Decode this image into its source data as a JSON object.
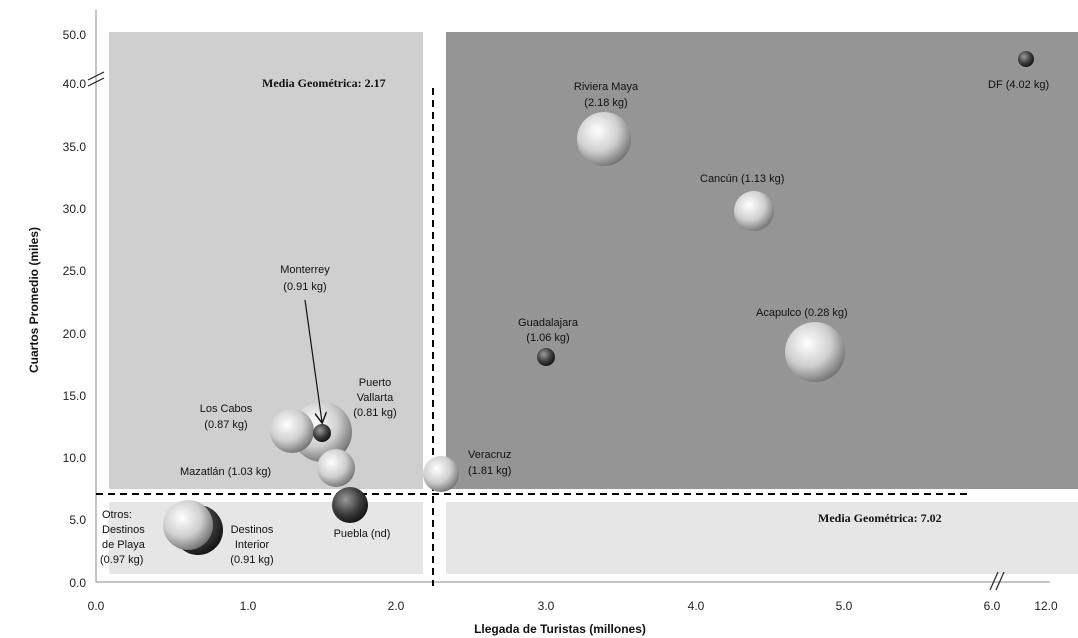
{
  "chart_data": {
    "type": "scatter",
    "xlabel": "Llegada de Turistas (millones)",
    "ylabel": "Cuartos Promedio  (miles)",
    "x_ticks": [
      "0.0",
      "1.0",
      "2.0",
      "3.0",
      "4.0",
      "5.0",
      "6.0",
      "12.0"
    ],
    "y_ticks": [
      "0.0",
      "5.0",
      "10.0",
      "15.0",
      "20.0",
      "25.0",
      "30.0",
      "35.0",
      "40.0",
      "50.0"
    ],
    "xlim": [
      0,
      12
    ],
    "ylim": [
      0,
      50
    ],
    "axis_breaks": {
      "x": "between 6.0 and 12.0",
      "y": "between 40.0 and 50.0"
    },
    "reference_lines": [
      {
        "axis": "x",
        "value": 2.17,
        "label": "Media Geométrica: 2.17"
      },
      {
        "axis": "y",
        "value": 7.02,
        "label": "Media Geométrica: 7.02"
      }
    ],
    "bubble_size_note": "bubble size proportional to the kg value in each label",
    "points": [
      {
        "label": "DF (4.02 kg)",
        "x": 11.0,
        "y": 42.0,
        "kg": 4.02
      },
      {
        "label": "Riviera Maya (2.18 kg)",
        "x": 3.4,
        "y": 35.2,
        "kg": 2.18
      },
      {
        "label": "Cancún (1.13 kg)",
        "x": 4.4,
        "y": 29.7,
        "kg": 1.13
      },
      {
        "label": "Acapulco (0.28 kg)",
        "x": 4.8,
        "y": 18.5,
        "kg": 0.28
      },
      {
        "label": "Guadalajara (1.06 kg)",
        "x": 3.0,
        "y": 18.0,
        "kg": 1.06
      },
      {
        "label": "Veracruz (1.81 kg)",
        "x": 2.25,
        "y": 8.7,
        "kg": 1.81
      },
      {
        "label": "Monterrey (0.91 kg)",
        "x": 1.45,
        "y": 12.0,
        "kg": 0.91
      },
      {
        "label": "Puerto Vallarta (0.81 kg)",
        "x": 1.45,
        "y": 12.0,
        "kg": 0.81
      },
      {
        "label": "Los Cabos (0.87 kg)",
        "x": 1.25,
        "y": 12.1,
        "kg": 0.87
      },
      {
        "label": "Mazatlán (1.03 kg)",
        "x": 1.6,
        "y": 9.2,
        "kg": 1.03
      },
      {
        "label": "Puebla (nd)",
        "x": 1.65,
        "y": 6.3,
        "kg": null
      },
      {
        "label": "Otros: Destinos de Playa (0.97 kg)",
        "x": 0.55,
        "y": 4.8,
        "kg": 0.97
      },
      {
        "label": "Destinos Interior (0.91 kg)",
        "x": 0.65,
        "y": 4.0,
        "kg": 0.91
      }
    ]
  },
  "labels": {
    "df": "DF (4.02 kg)",
    "riviera_1": "Riviera Maya",
    "riviera_2": "(2.18 kg)",
    "cancun": "Cancún (1.13 kg)",
    "acapulco": "Acapulco (0.28 kg)",
    "guadalajara_1": "Guadalajara",
    "guadalajara_2": "(1.06 kg)",
    "veracruz_1": "Veracruz",
    "veracruz_2": "(1.81 kg)",
    "monterrey_1": "Monterrey",
    "monterrey_2": "(0.91 kg)",
    "vallarta_1": "Puerto",
    "vallarta_2": "Vallarta",
    "vallarta_3": "(0.81 kg)",
    "cabos_1": "Los Cabos",
    "cabos_2": "(0.87 kg)",
    "mazatlan": "Mazatlán (1.03 kg)",
    "puebla": "Puebla (nd)",
    "otros_1": "Otros:",
    "otros_2": "Destinos",
    "otros_3": "de Playa",
    "otros_4": "(0.97 kg)",
    "interior_1": "Destinos",
    "interior_2": "Interior",
    "interior_3": "(0.91 kg)",
    "media_x": "Media Geométrica: 2.17",
    "media_y": "Media Geométrica: 7.02"
  },
  "colors": {
    "quadrant_top_left": "#cfcfcf",
    "quadrant_top_right": "#959595",
    "quadrant_bottom_left": "#e6e6e6",
    "quadrant_bottom_right": "#e6e6e6",
    "bubble_light": "#efefef",
    "bubble_mid": "#9a9a9a",
    "bubble_dark": "#2a2a2a"
  }
}
